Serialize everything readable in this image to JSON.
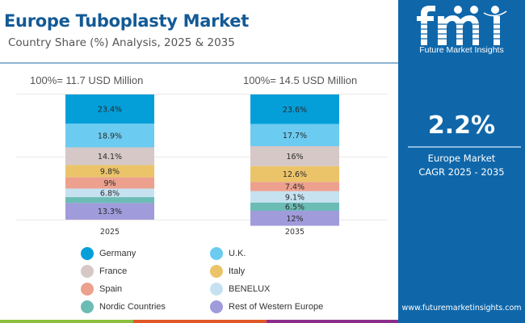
{
  "header": {
    "title": "Europe Tuboplasty Market",
    "subtitle": "Country Share (%) Analysis, 2025 & 2035"
  },
  "totals": [
    {
      "year": "2025",
      "label": "100%=  11.7 USD Million"
    },
    {
      "year": "2035",
      "label": "100%=  14.5 USD Million"
    }
  ],
  "chart_data": {
    "type": "bar",
    "stacked": true,
    "percent_stacked": true,
    "title": "Europe Tuboplasty Market",
    "subtitle": "Country Share (%) Analysis, 2025 & 2035",
    "xlabel": "",
    "ylabel": "",
    "ylim": [
      0,
      100
    ],
    "grid": true,
    "legend_position": "bottom",
    "categories": [
      "2025",
      "2035"
    ],
    "series": [
      {
        "name": "Germany",
        "color": "#049fd9",
        "values": [
          23.4,
          23.6
        ],
        "labels": [
          "23.4%",
          "23.6%"
        ]
      },
      {
        "name": "U.K.",
        "color": "#6ccbf0",
        "values": [
          18.9,
          17.7
        ],
        "labels": [
          "18.9%",
          "17.7%"
        ]
      },
      {
        "name": "France",
        "color": "#d5c8c6",
        "values": [
          14.1,
          16.0
        ],
        "labels": [
          "14.1%",
          "16%"
        ]
      },
      {
        "name": "Italy",
        "color": "#ebc46a",
        "values": [
          9.8,
          12.6
        ],
        "labels": [
          "9.8%",
          "12.6%"
        ]
      },
      {
        "name": "Spain",
        "color": "#eca08d",
        "values": [
          9.0,
          7.4
        ],
        "labels": [
          "9%",
          "7.4%"
        ]
      },
      {
        "name": "BENELUX",
        "color": "#c6e2f1",
        "values": [
          6.8,
          9.1
        ],
        "labels": [
          "6.8%",
          "9.1%"
        ]
      },
      {
        "name": "Nordic Countries",
        "color": "#6cbcb6",
        "values": [
          4.7,
          6.5
        ],
        "labels": [
          "",
          "6.5%"
        ]
      },
      {
        "name": "Rest of Western Europe",
        "color": "#a09bdb",
        "values": [
          13.3,
          12.0
        ],
        "labels": [
          "13.3%",
          "12%"
        ]
      }
    ]
  },
  "legend": [
    {
      "name": "Germany",
      "color": "#049fd9"
    },
    {
      "name": "U.K.",
      "color": "#6ccbf0"
    },
    {
      "name": "France",
      "color": "#d5c8c6"
    },
    {
      "name": "Italy",
      "color": "#ebc46a"
    },
    {
      "name": "Spain",
      "color": "#eca08d"
    },
    {
      "name": "BENELUX",
      "color": "#c6e2f1"
    },
    {
      "name": "Nordic Countries",
      "color": "#6cbcb6"
    },
    {
      "name": "Rest of Western Europe",
      "color": "#a09bdb"
    }
  ],
  "panel": {
    "brand": "Future Market Insights",
    "cagr_value": "2.2%",
    "cagr_line1": "Europe Market",
    "cagr_line2": "CAGR 2025 - 2035",
    "website": "www.futuremarketinsights.com"
  },
  "colors": {
    "brand_blue": "#0f67aa",
    "title_blue": "#135a96",
    "bottom_green": "#8cbf3f",
    "bottom_orange": "#e0572a",
    "bottom_purple": "#8c2d8a"
  }
}
